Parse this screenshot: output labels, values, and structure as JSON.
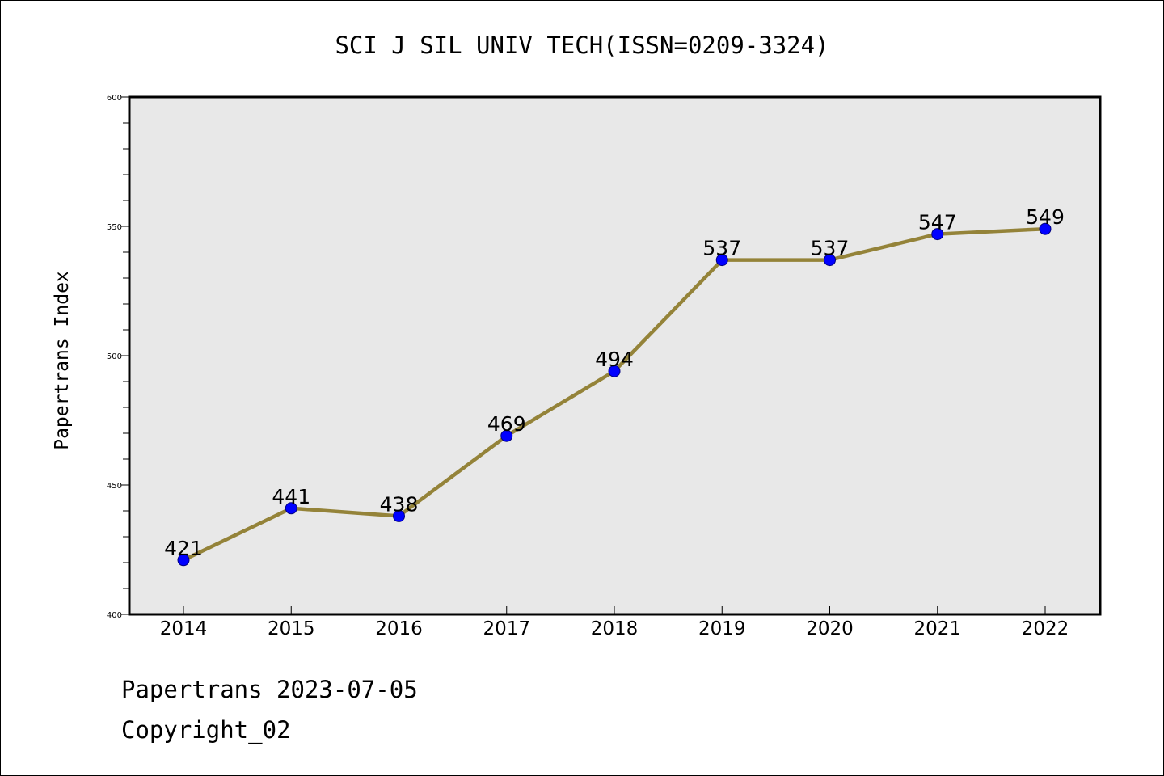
{
  "chart_data": {
    "type": "line",
    "title": "SCI J SIL UNIV TECH(ISSN=0209-3324)",
    "xlabel": "",
    "ylabel": "Papertrans Index",
    "categories": [
      "2014",
      "2015",
      "2016",
      "2017",
      "2018",
      "2019",
      "2020",
      "2021",
      "2022"
    ],
    "series": [
      {
        "values": [
          421,
          441,
          438,
          469,
          494,
          537,
          537,
          547,
          549
        ]
      }
    ],
    "data_labels": [
      "421",
      "441",
      "438",
      "469",
      "494",
      "537",
      "537",
      "547",
      "549"
    ],
    "yticks": [
      400,
      450,
      500,
      550,
      600
    ],
    "ytick_labels": [
      "400",
      "450",
      "500",
      "550",
      "600"
    ],
    "ylim": [
      400,
      600
    ],
    "grid": false,
    "legend": "none",
    "colors": {
      "line": "#948339",
      "marker": "#0000ff",
      "marker_edge": "#000080",
      "plot_background": "#e8e8e8",
      "axes": "#000000"
    }
  },
  "footer": {
    "line1": "Papertrans 2023-07-05",
    "line2": "Copyright_02"
  }
}
